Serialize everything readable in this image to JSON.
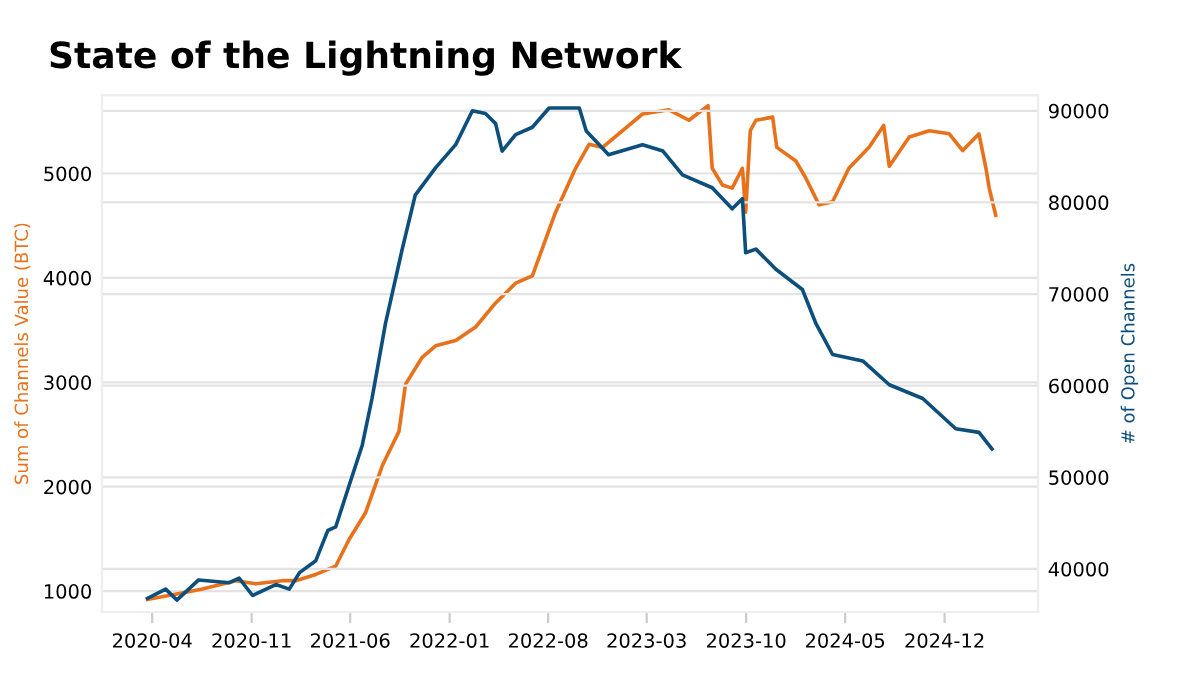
{
  "chart_data": {
    "type": "line",
    "title": "State of the Lightning Network",
    "ylabel": "Sum of Channels Value (BTC)",
    "y2label": "# of Open Channels",
    "xlim": [
      "2019-12-15",
      "2025-06-20"
    ],
    "xticks": [
      "2020-04",
      "2020-11",
      "2021-06",
      "2022-01",
      "2022-08",
      "2023-03",
      "2023-10",
      "2024-05",
      "2024-12"
    ],
    "ylim": [
      800,
      5750
    ],
    "yticks": [
      1000,
      2000,
      3000,
      4000,
      5000
    ],
    "y2lim": [
      35300,
      91700
    ],
    "y2ticks": [
      40000,
      50000,
      60000,
      70000,
      80000,
      90000
    ],
    "grid": true,
    "marker": "none",
    "line_style": "solid",
    "series": [
      {
        "color": "#e8711c",
        "x": [
          "2020-03-22",
          "2020-05-21",
          "2020-07-18",
          "2020-09-28",
          "2020-11-10",
          "2021-01-06",
          "2021-02-04",
          "2021-03-19",
          "2021-05-01",
          "2021-05-29",
          "2021-07-04",
          "2021-08-09",
          "2021-09-14",
          "2021-09-28",
          "2021-11-03",
          "2021-12-02",
          "2022-01-14",
          "2022-02-26",
          "2022-04-10",
          "2022-05-23",
          "2022-06-28",
          "2022-08-17",
          "2022-09-29",
          "2022-10-28",
          "2022-11-26",
          "2023-02-20",
          "2023-04-18",
          "2023-05-31",
          "2023-07-11",
          "2023-07-20",
          "2023-08-11",
          "2023-09-01",
          "2023-09-23",
          "2023-09-30",
          "2023-10-10",
          "2023-10-22",
          "2023-11-27",
          "2023-12-06",
          "2024-01-16",
          "2024-02-06",
          "2024-03-06",
          "2024-04-04",
          "2024-05-09",
          "2024-06-21",
          "2024-07-23",
          "2024-08-04",
          "2024-09-16",
          "2024-10-29",
          "2024-12-11",
          "2025-01-09",
          "2025-02-13",
          "2025-02-28",
          "2025-03-07",
          "2025-03-21"
        ],
        "values": [
          920,
          970,
          1020,
          1100,
          1070,
          1100,
          1100,
          1160,
          1240,
          1490,
          1750,
          2200,
          2530,
          2980,
          3240,
          3350,
          3400,
          3530,
          3760,
          3950,
          4020,
          4630,
          5050,
          5280,
          5250,
          5570,
          5610,
          5510,
          5650,
          5050,
          4890,
          4860,
          5050,
          4630,
          5410,
          5510,
          5540,
          5250,
          5120,
          4960,
          4700,
          4730,
          5050,
          5250,
          5460,
          5070,
          5350,
          5410,
          5380,
          5220,
          5380,
          5050,
          4860,
          4600
        ]
      },
      {
        "color": "#0d4f7c",
        "axis": "y2",
        "x": [
          "2020-03-22",
          "2020-04-30",
          "2020-05-24",
          "2020-07-10",
          "2020-09-14",
          "2020-10-05",
          "2020-11-03",
          "2020-12-23",
          "2021-01-21",
          "2021-02-12",
          "2021-03-19",
          "2021-04-14",
          "2021-05-01",
          "2021-05-29",
          "2021-06-27",
          "2021-07-18",
          "2021-08-16",
          "2021-09-21",
          "2021-10-19",
          "2021-12-02",
          "2022-01-14",
          "2022-02-19",
          "2022-03-19",
          "2022-04-10",
          "2022-04-24",
          "2022-05-23",
          "2022-06-28",
          "2022-08-03",
          "2022-10-07",
          "2022-10-22",
          "2022-11-19",
          "2022-12-09",
          "2023-02-20",
          "2023-04-05",
          "2023-05-17",
          "2023-07-20",
          "2023-09-01",
          "2023-09-23",
          "2023-09-30",
          "2023-10-22",
          "2023-12-04",
          "2024-01-30",
          "2024-02-28",
          "2024-04-04",
          "2024-06-08",
          "2024-08-04",
          "2024-10-15",
          "2024-12-25",
          "2025-02-13",
          "2025-03-13"
        ],
        "values": [
          36800,
          37800,
          36600,
          38800,
          38500,
          39000,
          37100,
          38300,
          37800,
          39600,
          40900,
          44200,
          44600,
          49000,
          53500,
          58600,
          66800,
          74900,
          80800,
          83800,
          86300,
          90000,
          89700,
          88600,
          85600,
          87400,
          88200,
          90300,
          90300,
          87800,
          86300,
          85200,
          86300,
          85600,
          83000,
          81600,
          79300,
          80400,
          74500,
          74900,
          72700,
          70500,
          66800,
          63400,
          62700,
          60100,
          58600,
          55300,
          54900,
          53100
        ]
      }
    ]
  }
}
